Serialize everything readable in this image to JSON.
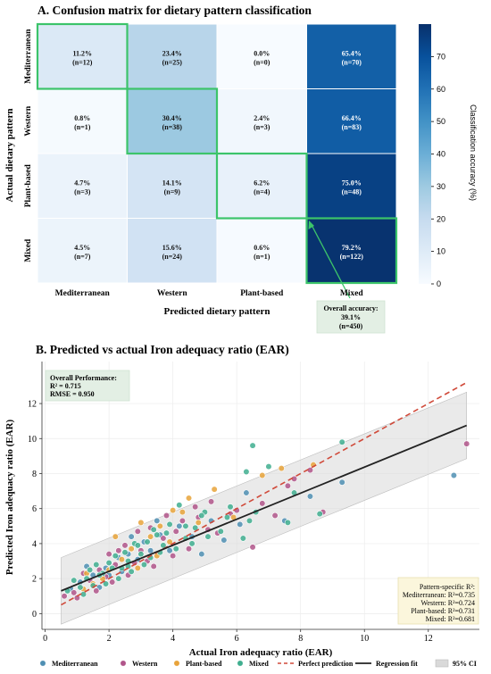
{
  "chart_data": [
    {
      "type": "heatmap",
      "title": "A. Confusion matrix for dietary pattern classification",
      "xlabel": "Predicted dietary pattern",
      "ylabel": "Actual dietary pattern",
      "x_categories": [
        "Mediterranean",
        "Western",
        "Plant-based",
        "Mixed"
      ],
      "y_categories": [
        "Mediterranean",
        "Western",
        "Plant-based",
        "Mixed"
      ],
      "colorbar": {
        "label": "Classification accuracy (%)",
        "min": 0,
        "max": 80,
        "ticks": [
          0,
          10,
          20,
          30,
          40,
          50,
          60,
          70
        ]
      },
      "cells": [
        [
          {
            "pct": "11.2%",
            "n": "(n=12)",
            "v": 11.2
          },
          {
            "pct": "23.4%",
            "n": "(n=25)",
            "v": 23.4
          },
          {
            "pct": "0.0%",
            "n": "(n=0)",
            "v": 0.0
          },
          {
            "pct": "65.4%",
            "n": "(n=70)",
            "v": 65.4
          }
        ],
        [
          {
            "pct": "0.8%",
            "n": "(n=1)",
            "v": 0.8
          },
          {
            "pct": "30.4%",
            "n": "(n=38)",
            "v": 30.4
          },
          {
            "pct": "2.4%",
            "n": "(n=3)",
            "v": 2.4
          },
          {
            "pct": "66.4%",
            "n": "(n=83)",
            "v": 66.4
          }
        ],
        [
          {
            "pct": "4.7%",
            "n": "(n=3)",
            "v": 4.7
          },
          {
            "pct": "14.1%",
            "n": "(n=9)",
            "v": 14.1
          },
          {
            "pct": "6.2%",
            "n": "(n=4)",
            "v": 6.2
          },
          {
            "pct": "75.0%",
            "n": "(n=48)",
            "v": 75.0
          }
        ],
        [
          {
            "pct": "4.5%",
            "n": "(n=7)",
            "v": 4.5
          },
          {
            "pct": "15.6%",
            "n": "(n=24)",
            "v": 15.6
          },
          {
            "pct": "0.6%",
            "n": "(n=1)",
            "v": 0.6
          },
          {
            "pct": "79.2%",
            "n": "(n=122)",
            "v": 79.2
          }
        ]
      ],
      "annotation": [
        "Overall accuracy:",
        "39.1%",
        "(n=450)"
      ],
      "highlight_color": "#3cc46a"
    },
    {
      "type": "scatter",
      "title": "B. Predicted vs actual Iron adequacy ratio (EAR)",
      "xlabel": "Actual Iron adequacy ratio (EAR)",
      "ylabel": "Predicted Iron adequacy ratio (EAR)",
      "xlim": [
        -0.1,
        13.6
      ],
      "ylim": [
        -0.9,
        14.4
      ],
      "xticks": [
        0,
        2,
        4,
        6,
        8,
        10,
        12
      ],
      "yticks": [
        0,
        2,
        4,
        6,
        8,
        10,
        12
      ],
      "grid": true,
      "performance": [
        "Overall Performance:",
        "R² = 0.715",
        "RMSE = 0.950"
      ],
      "pattern_stats": [
        "Pattern-specific R²:",
        "Mediterranean: R²=0.735",
        "Western: R²=0.724",
        "Plant-based: R²=0.731",
        "Mixed: R²=0.681"
      ],
      "series": [
        {
          "name": "Mediterranean",
          "color": "#4f8fb3"
        },
        {
          "name": "Western",
          "color": "#b0558a"
        },
        {
          "name": "Plant-based",
          "color": "#e8a33a"
        },
        {
          "name": "Mixed",
          "color": "#3fae8f"
        }
      ],
      "perfect_prediction": {
        "name": "Perfect prediction",
        "color": "#d04a3a",
        "from": [
          0.5,
          0.5
        ],
        "to": [
          13.2,
          13.2
        ]
      },
      "regression_fit": {
        "name": "Regression fit",
        "color": "#222222",
        "from": [
          0.5,
          1.3
        ],
        "to": [
          13.2,
          10.75
        ]
      },
      "ci": {
        "name": "95% CI",
        "halfwidth": 1.9
      },
      "points": {
        "Mediterranean": [
          [
            12.8,
            7.9
          ],
          [
            9.3,
            7.5
          ],
          [
            8.3,
            6.7
          ],
          [
            6.3,
            6.9
          ],
          [
            7.5,
            5.3
          ],
          [
            5.2,
            5.3
          ],
          [
            4.2,
            5.0
          ],
          [
            3.6,
            4.5
          ],
          [
            3.1,
            4.1
          ],
          [
            2.6,
            3.4
          ],
          [
            2.3,
            3.2
          ],
          [
            1.9,
            2.6
          ],
          [
            1.5,
            2.2
          ],
          [
            1.1,
            1.8
          ],
          [
            0.8,
            1.4
          ],
          [
            1.3,
            2.7
          ],
          [
            2.0,
            2.2
          ],
          [
            2.9,
            3.1
          ],
          [
            3.3,
            3.6
          ],
          [
            4.6,
            4.4
          ],
          [
            5.6,
            4.2
          ],
          [
            6.1,
            5.1
          ],
          [
            2.4,
            2.4
          ],
          [
            3.9,
            3.6
          ],
          [
            1.7,
            1.5
          ],
          [
            4.9,
            3.4
          ],
          [
            3.5,
            5.3
          ],
          [
            2.7,
            4.4
          ]
        ],
        "Western": [
          [
            13.2,
            9.7
          ],
          [
            8.3,
            8.2
          ],
          [
            7.8,
            7.7
          ],
          [
            8.7,
            5.8
          ],
          [
            6.8,
            6.3
          ],
          [
            7.2,
            5.6
          ],
          [
            6.5,
            3.8
          ],
          [
            5.8,
            5.7
          ],
          [
            5.1,
            4.8
          ],
          [
            4.7,
            6.1
          ],
          [
            4.3,
            5.3
          ],
          [
            4.1,
            4.7
          ],
          [
            3.7,
            4.3
          ],
          [
            3.3,
            4.9
          ],
          [
            3.0,
            3.6
          ],
          [
            2.8,
            2.9
          ],
          [
            2.5,
            3.9
          ],
          [
            2.2,
            2.8
          ],
          [
            2.0,
            3.4
          ],
          [
            1.7,
            2.5
          ],
          [
            1.4,
            1.9
          ],
          [
            1.2,
            2.3
          ],
          [
            0.9,
            1.2
          ],
          [
            0.6,
            1.0
          ],
          [
            1.0,
            0.9
          ],
          [
            2.1,
            1.8
          ],
          [
            2.6,
            2.2
          ],
          [
            3.4,
            2.7
          ],
          [
            4.0,
            3.3
          ],
          [
            4.5,
            3.7
          ],
          [
            5.4,
            4.6
          ],
          [
            6.0,
            5.9
          ],
          [
            3.8,
            5.6
          ],
          [
            2.9,
            4.7
          ],
          [
            7.6,
            7.3
          ],
          [
            5.2,
            6.4
          ],
          [
            1.6,
            1.3
          ],
          [
            3.2,
            3.0
          ],
          [
            4.8,
            5.5
          ],
          [
            2.3,
            3.6
          ],
          [
            1.9,
            2.1
          ]
        ],
        "Plant-based": [
          [
            8.4,
            8.5
          ],
          [
            7.4,
            8.3
          ],
          [
            6.8,
            7.9
          ],
          [
            5.3,
            7.1
          ],
          [
            4.5,
            6.6
          ],
          [
            4.3,
            5.8
          ],
          [
            3.6,
            5.0
          ],
          [
            3.3,
            4.4
          ],
          [
            3.0,
            5.2
          ],
          [
            2.7,
            3.7
          ],
          [
            2.4,
            3.1
          ],
          [
            2.0,
            2.5
          ],
          [
            1.8,
            2.0
          ],
          [
            1.5,
            1.7
          ],
          [
            1.2,
            1.4
          ],
          [
            3.9,
            4.1
          ],
          [
            4.8,
            5.2
          ],
          [
            2.2,
            4.4
          ],
          [
            3.5,
            3.3
          ],
          [
            4.0,
            5.9
          ],
          [
            2.9,
            2.6
          ],
          [
            1.3,
            2.3
          ],
          [
            5.9,
            5.5
          ]
        ],
        "Mixed": [
          [
            9.3,
            9.8
          ],
          [
            6.5,
            9.6
          ],
          [
            7.0,
            8.4
          ],
          [
            6.3,
            8.1
          ],
          [
            7.8,
            6.9
          ],
          [
            8.6,
            5.7
          ],
          [
            7.6,
            5.2
          ],
          [
            6.6,
            5.8
          ],
          [
            6.2,
            4.3
          ],
          [
            5.7,
            5.5
          ],
          [
            5.5,
            4.7
          ],
          [
            5.0,
            5.8
          ],
          [
            4.7,
            4.9
          ],
          [
            4.4,
            4.3
          ],
          [
            4.2,
            6.2
          ],
          [
            3.9,
            5.1
          ],
          [
            3.7,
            3.9
          ],
          [
            3.4,
            4.8
          ],
          [
            3.2,
            4.1
          ],
          [
            3.0,
            3.4
          ],
          [
            2.8,
            4.0
          ],
          [
            2.6,
            3.0
          ],
          [
            2.4,
            2.6
          ],
          [
            2.2,
            3.3
          ],
          [
            2.0,
            2.9
          ],
          [
            1.8,
            2.3
          ],
          [
            1.6,
            2.8
          ],
          [
            1.5,
            1.6
          ],
          [
            1.3,
            2.0
          ],
          [
            1.1,
            1.5
          ],
          [
            0.9,
            1.9
          ],
          [
            0.7,
            1.3
          ],
          [
            1.4,
            2.5
          ],
          [
            1.9,
            1.7
          ],
          [
            2.3,
            2.0
          ],
          [
            2.7,
            2.4
          ],
          [
            3.1,
            2.8
          ],
          [
            3.6,
            3.5
          ],
          [
            4.1,
            3.7
          ],
          [
            4.6,
            4.0
          ],
          [
            5.1,
            4.4
          ],
          [
            3.5,
            4.5
          ],
          [
            2.9,
            3.9
          ],
          [
            2.5,
            3.5
          ],
          [
            2.1,
            2.6
          ],
          [
            1.7,
            2.2
          ],
          [
            4.9,
            5.6
          ],
          [
            5.8,
            6.1
          ],
          [
            3.8,
            4.6
          ],
          [
            4.4,
            5.0
          ],
          [
            3.3,
            3.2
          ],
          [
            2.6,
            2.7
          ],
          [
            1.2,
            1.1
          ],
          [
            6.4,
            5.3
          ]
        ]
      }
    }
  ]
}
